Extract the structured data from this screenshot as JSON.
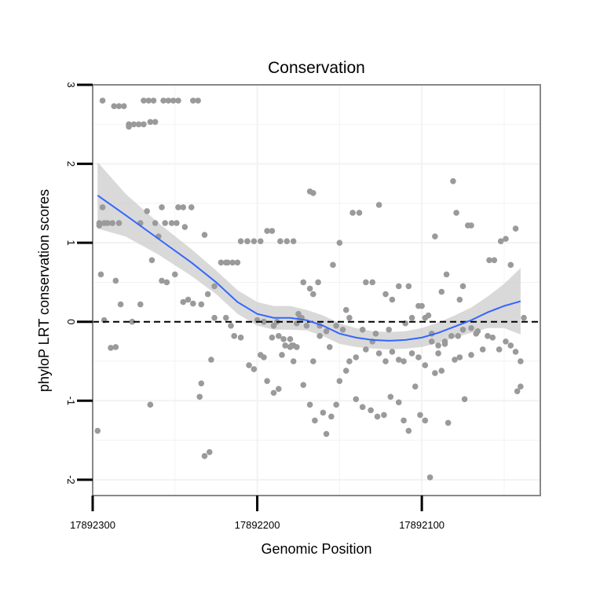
{
  "chart_data": {
    "type": "scatter",
    "title": "Conservation",
    "xlabel": "Genomic Position",
    "ylabel": "phyloP LRT conservation scores",
    "xlim": [
      17892300,
      17892028
    ],
    "ylim": [
      -2.2,
      3
    ],
    "x_reversed": true,
    "x_ticks": [
      17892300,
      17892200,
      17892100
    ],
    "x_tick_labels": [
      "17892300",
      "17892200",
      "17892100"
    ],
    "y_ticks": [
      -2,
      -1,
      0,
      1,
      2,
      3
    ],
    "y_tick_labels": [
      "-2",
      "-1",
      "0",
      "1",
      "2",
      "3"
    ],
    "reference_line": {
      "y": 0,
      "style": "dashed"
    },
    "colors": {
      "points": "#9a9a9a",
      "smooth": "#3366ff",
      "band": "#cccccc",
      "panel_border": "#888888",
      "grid": "#f2f2f2"
    },
    "points": [
      [
        17892294,
        2.8
      ],
      [
        17892287,
        2.73
      ],
      [
        17892284,
        2.73
      ],
      [
        17892281,
        2.73
      ],
      [
        17892269,
        2.8
      ],
      [
        17892266,
        2.8
      ],
      [
        17892263,
        2.8
      ],
      [
        17892257,
        2.8
      ],
      [
        17892254,
        2.8
      ],
      [
        17892251,
        2.8
      ],
      [
        17892248,
        2.8
      ],
      [
        17892239,
        2.8
      ],
      [
        17892236,
        2.8
      ],
      [
        17892278,
        2.5
      ],
      [
        17892275,
        2.5
      ],
      [
        17892272,
        2.5
      ],
      [
        17892269,
        2.5
      ],
      [
        17892278,
        2.47
      ],
      [
        17892265,
        2.53
      ],
      [
        17892262,
        2.53
      ],
      [
        17892296,
        1.25
      ],
      [
        17892293,
        1.25
      ],
      [
        17892291,
        1.25
      ],
      [
        17892288,
        1.25
      ],
      [
        17892284,
        1.25
      ],
      [
        17892271,
        1.25
      ],
      [
        17892262,
        1.25
      ],
      [
        17892256,
        1.25
      ],
      [
        17892252,
        1.25
      ],
      [
        17892249,
        1.25
      ],
      [
        17892244,
        1.2
      ],
      [
        17892294,
        1.45
      ],
      [
        17892258,
        1.45
      ],
      [
        17892248,
        1.45
      ],
      [
        17892245,
        1.45
      ],
      [
        17892240,
        1.45
      ],
      [
        17892267,
        1.4
      ],
      [
        17892260,
        1.08
      ],
      [
        17892286,
        0.52
      ],
      [
        17892295,
        0.6
      ],
      [
        17892283,
        0.22
      ],
      [
        17892276,
        0.0
      ],
      [
        17892271,
        0.22
      ],
      [
        17892264,
        0.78
      ],
      [
        17892258,
        0.52
      ],
      [
        17892255,
        0.5
      ],
      [
        17892250,
        0.6
      ],
      [
        17892245,
        0.25
      ],
      [
        17892242,
        0.28
      ],
      [
        17892239,
        0.23
      ],
      [
        17892234,
        0.22
      ],
      [
        17892232,
        1.1
      ],
      [
        17892296,
        1.22
      ],
      [
        17892293,
        0.02
      ],
      [
        17892289,
        -0.33
      ],
      [
        17892286,
        -0.32
      ],
      [
        17892297,
        -1.38
      ],
      [
        17892265,
        -1.05
      ],
      [
        17892235,
        -0.95
      ],
      [
        17892234,
        -0.78
      ],
      [
        17892232,
        -1.7
      ],
      [
        17892229,
        -1.65
      ],
      [
        17892228,
        -0.48
      ],
      [
        17892222,
        0.75
      ],
      [
        17892219,
        0.75
      ],
      [
        17892215,
        0.75
      ],
      [
        17892210,
        1.02
      ],
      [
        17892206,
        1.02
      ],
      [
        17892202,
        1.02
      ],
      [
        17892198,
        1.02
      ],
      [
        17892194,
        1.15
      ],
      [
        17892191,
        1.15
      ],
      [
        17892186,
        1.02
      ],
      [
        17892182,
        1.02
      ],
      [
        17892178,
        1.02
      ],
      [
        17892172,
        0.5
      ],
      [
        17892168,
        0.42
      ],
      [
        17892219,
        0.05
      ],
      [
        17892216,
        -0.05
      ],
      [
        17892214,
        -0.18
      ],
      [
        17892210,
        -0.2
      ],
      [
        17892205,
        -0.55
      ],
      [
        17892202,
        -0.6
      ],
      [
        17892198,
        -0.42
      ],
      [
        17892196,
        -0.45
      ],
      [
        17892194,
        -0.75
      ],
      [
        17892191,
        -0.2
      ],
      [
        17892187,
        -0.18
      ],
      [
        17892183,
        -0.3
      ],
      [
        17892179,
        -0.3
      ],
      [
        17892175,
        0.1
      ],
      [
        17892173,
        0.05
      ],
      [
        17892200,
        0.02
      ],
      [
        17892196,
        0.0
      ],
      [
        17892190,
        -0.05
      ],
      [
        17892188,
        0.0
      ],
      [
        17892184,
        -0.22
      ],
      [
        17892180,
        -0.22
      ],
      [
        17892176,
        -0.32
      ],
      [
        17892172,
        -0.8
      ],
      [
        17892168,
        -1.05
      ],
      [
        17892165,
        -1.25
      ],
      [
        17892160,
        -1.15
      ],
      [
        17892158,
        -1.42
      ],
      [
        17892155,
        -1.2
      ],
      [
        17892152,
        -1.05
      ],
      [
        17892190,
        -0.9
      ],
      [
        17892187,
        -0.85
      ],
      [
        17892185,
        -0.42
      ],
      [
        17892178,
        -0.5
      ],
      [
        17892166,
        -0.5
      ],
      [
        17892162,
        -0.18
      ],
      [
        17892156,
        -0.32
      ],
      [
        17892150,
        -0.75
      ],
      [
        17892146,
        -0.62
      ],
      [
        17892144,
        -0.5
      ],
      [
        17892140,
        -0.45
      ],
      [
        17892166,
        0.35
      ],
      [
        17892163,
        0.5
      ],
      [
        17892154,
        0.72
      ],
      [
        17892150,
        1.0
      ],
      [
        17892146,
        0.15
      ],
      [
        17892142,
        1.38
      ],
      [
        17892138,
        1.38
      ],
      [
        17892134,
        0.5
      ],
      [
        17892130,
        0.5
      ],
      [
        17892126,
        1.48
      ],
      [
        17892122,
        0.35
      ],
      [
        17892118,
        0.28
      ],
      [
        17892114,
        0.45
      ],
      [
        17892108,
        0.45
      ],
      [
        17892140,
        -0.98
      ],
      [
        17892136,
        -1.08
      ],
      [
        17892131,
        -1.12
      ],
      [
        17892127,
        -1.2
      ],
      [
        17892123,
        -1.18
      ],
      [
        17892119,
        -0.95
      ],
      [
        17892114,
        -1.02
      ],
      [
        17892111,
        -1.25
      ],
      [
        17892108,
        -1.38
      ],
      [
        17892104,
        -0.82
      ],
      [
        17892101,
        -1.18
      ],
      [
        17892098,
        -1.25
      ],
      [
        17892095,
        -1.97
      ],
      [
        17892134,
        -0.35
      ],
      [
        17892130,
        -0.25
      ],
      [
        17892126,
        -0.4
      ],
      [
        17892122,
        -0.5
      ],
      [
        17892118,
        -0.38
      ],
      [
        17892114,
        -0.48
      ],
      [
        17892111,
        -0.5
      ],
      [
        17892106,
        -0.4
      ],
      [
        17892102,
        -0.45
      ],
      [
        17892098,
        -0.55
      ],
      [
        17892094,
        -0.25
      ],
      [
        17892090,
        -0.4
      ],
      [
        17892168,
        1.65
      ],
      [
        17892166,
        1.63
      ],
      [
        17892100,
        0.2
      ],
      [
        17892096,
        0.08
      ],
      [
        17892092,
        1.08
      ],
      [
        17892088,
        0.38
      ],
      [
        17892085,
        0.6
      ],
      [
        17892081,
        1.78
      ],
      [
        17892079,
        1.38
      ],
      [
        17892077,
        0.28
      ],
      [
        17892075,
        0.45
      ],
      [
        17892072,
        1.22
      ],
      [
        17892070,
        1.22
      ],
      [
        17892092,
        -0.65
      ],
      [
        17892088,
        -0.62
      ],
      [
        17892086,
        -0.28
      ],
      [
        17892084,
        -1.28
      ],
      [
        17892080,
        -0.48
      ],
      [
        17892077,
        -0.45
      ],
      [
        17892074,
        -0.98
      ],
      [
        17892070,
        -0.42
      ],
      [
        17892067,
        -0.15
      ],
      [
        17892063,
        -0.35
      ],
      [
        17892059,
        0.78
      ],
      [
        17892056,
        0.78
      ],
      [
        17892052,
        1.02
      ],
      [
        17892049,
        1.05
      ],
      [
        17892046,
        0.72
      ],
      [
        17892043,
        1.18
      ],
      [
        17892042,
        -0.88
      ],
      [
        17892040,
        -0.82
      ],
      [
        17892038,
        0.05
      ],
      [
        17892040,
        -0.5
      ],
      [
        17892043,
        -0.38
      ],
      [
        17892046,
        -0.3
      ],
      [
        17892049,
        -0.25
      ],
      [
        17892053,
        -0.35
      ],
      [
        17892057,
        -0.2
      ],
      [
        17892060,
        -0.18
      ],
      [
        17892066,
        -0.12
      ],
      [
        17892070,
        -0.08
      ],
      [
        17892075,
        -0.1
      ],
      [
        17892078,
        -0.18
      ],
      [
        17892082,
        -0.18
      ],
      [
        17892086,
        -0.25
      ],
      [
        17892090,
        -0.3
      ],
      [
        17892094,
        -0.15
      ],
      [
        17892098,
        0.05
      ],
      [
        17892102,
        0.2
      ],
      [
        17892106,
        0.05
      ],
      [
        17892110,
        -0.02
      ],
      [
        17892120,
        -0.1
      ],
      [
        17892128,
        -0.15
      ],
      [
        17892136,
        -0.1
      ],
      [
        17892144,
        0.05
      ],
      [
        17892148,
        -0.1
      ],
      [
        17892152,
        -0.05
      ],
      [
        17892158,
        -0.12
      ],
      [
        17892162,
        -0.05
      ],
      [
        17892170,
        -0.05
      ],
      [
        17892174,
        0.05
      ],
      [
        17892176,
        -0.02
      ],
      [
        17892178,
        -0.3
      ],
      [
        17892180,
        -0.32
      ],
      [
        17892206,
        1.02
      ],
      [
        17892212,
        0.75
      ],
      [
        17892218,
        0.75
      ],
      [
        17892226,
        0.45
      ],
      [
        17892230,
        0.35
      ],
      [
        17892226,
        0.05
      ]
    ],
    "smooth_line": [
      [
        17892297,
        1.6
      ],
      [
        17892280,
        1.35
      ],
      [
        17892260,
        1.05
      ],
      [
        17892240,
        0.75
      ],
      [
        17892225,
        0.5
      ],
      [
        17892212,
        0.25
      ],
      [
        17892200,
        0.1
      ],
      [
        17892190,
        0.05
      ],
      [
        17892180,
        0.05
      ],
      [
        17892170,
        0.02
      ],
      [
        17892160,
        -0.05
      ],
      [
        17892150,
        -0.15
      ],
      [
        17892140,
        -0.2
      ],
      [
        17892130,
        -0.23
      ],
      [
        17892120,
        -0.24
      ],
      [
        17892110,
        -0.23
      ],
      [
        17892100,
        -0.2
      ],
      [
        17892090,
        -0.14
      ],
      [
        17892080,
        -0.06
      ],
      [
        17892070,
        0.02
      ],
      [
        17892060,
        0.12
      ],
      [
        17892050,
        0.2
      ],
      [
        17892040,
        0.26
      ]
    ],
    "band_upper": [
      [
        17892297,
        2.02
      ],
      [
        17892280,
        1.62
      ],
      [
        17892260,
        1.25
      ],
      [
        17892240,
        0.92
      ],
      [
        17892225,
        0.65
      ],
      [
        17892212,
        0.4
      ],
      [
        17892200,
        0.25
      ],
      [
        17892190,
        0.2
      ],
      [
        17892180,
        0.2
      ],
      [
        17892170,
        0.15
      ],
      [
        17892160,
        0.08
      ],
      [
        17892150,
        -0.02
      ],
      [
        17892140,
        -0.08
      ],
      [
        17892130,
        -0.12
      ],
      [
        17892120,
        -0.13
      ],
      [
        17892110,
        -0.12
      ],
      [
        17892100,
        -0.08
      ],
      [
        17892090,
        -0.01
      ],
      [
        17892080,
        0.08
      ],
      [
        17892070,
        0.18
      ],
      [
        17892060,
        0.32
      ],
      [
        17892050,
        0.48
      ],
      [
        17892040,
        0.68
      ]
    ],
    "band_lower": [
      [
        17892297,
        1.18
      ],
      [
        17892280,
        1.08
      ],
      [
        17892260,
        0.85
      ],
      [
        17892240,
        0.58
      ],
      [
        17892225,
        0.35
      ],
      [
        17892212,
        0.1
      ],
      [
        17892200,
        -0.05
      ],
      [
        17892190,
        -0.1
      ],
      [
        17892180,
        -0.1
      ],
      [
        17892170,
        -0.11
      ],
      [
        17892160,
        -0.18
      ],
      [
        17892150,
        -0.28
      ],
      [
        17892140,
        -0.32
      ],
      [
        17892130,
        -0.34
      ],
      [
        17892120,
        -0.35
      ],
      [
        17892110,
        -0.34
      ],
      [
        17892100,
        -0.32
      ],
      [
        17892090,
        -0.27
      ],
      [
        17892080,
        -0.2
      ],
      [
        17892070,
        -0.14
      ],
      [
        17892060,
        -0.08
      ],
      [
        17892050,
        -0.08
      ],
      [
        17892040,
        -0.16
      ]
    ]
  }
}
